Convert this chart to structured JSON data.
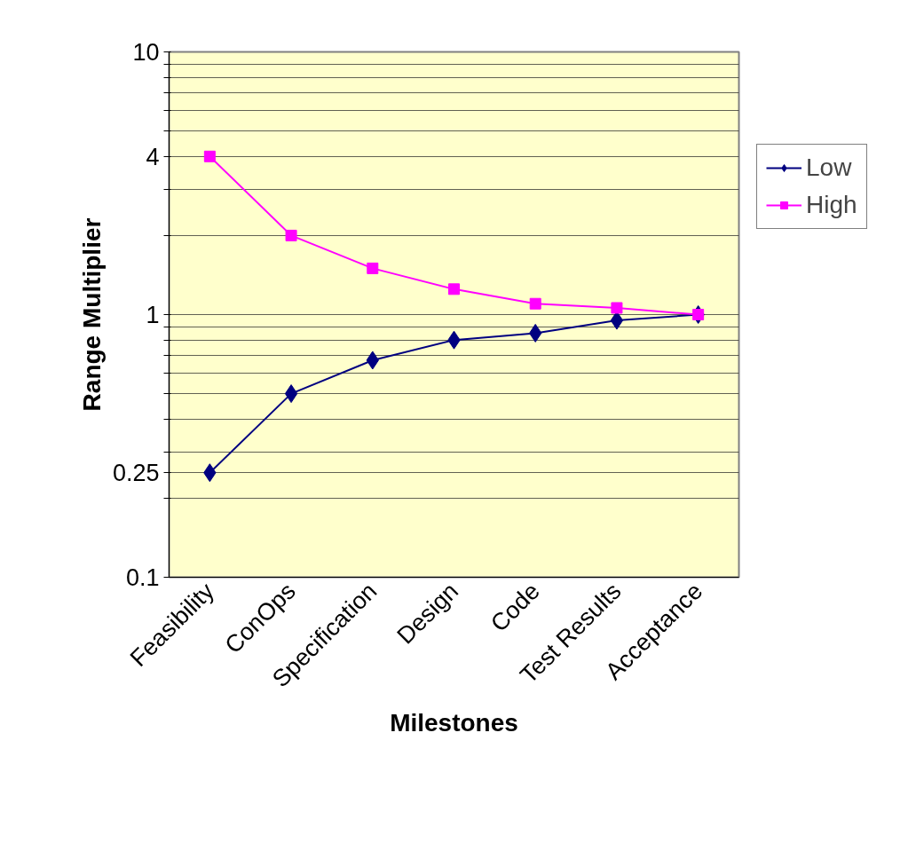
{
  "chart_data": {
    "type": "line",
    "xlabel": "Milestones",
    "ylabel": "Range Multiplier",
    "categories": [
      "Feasibility",
      "ConOps",
      "Specification",
      "Design",
      "Code",
      "Test Results",
      "Acceptance"
    ],
    "series": [
      {
        "name": "Low",
        "color": "#000080",
        "marker": "diamond",
        "values": [
          0.25,
          0.5,
          0.67,
          0.8,
          0.85,
          0.95,
          1.0
        ]
      },
      {
        "name": "High",
        "color": "#ff00ff",
        "marker": "square",
        "values": [
          4,
          2,
          1.5,
          1.25,
          1.1,
          1.06,
          1.0
        ]
      }
    ],
    "log": "y",
    "ylim": [
      0.1,
      10
    ],
    "yticks": [
      0.1,
      {
        "value": 0.2,
        "label": null
      },
      0.25,
      {
        "value": 0.3,
        "label": null
      },
      {
        "value": 0.4,
        "label": null
      },
      {
        "value": 0.5,
        "label": null
      },
      {
        "value": 0.6,
        "label": null
      },
      {
        "value": 0.7,
        "label": null
      },
      {
        "value": 0.8,
        "label": null
      },
      {
        "value": 0.9,
        "label": null
      },
      1,
      {
        "value": 2,
        "label": null
      },
      {
        "value": 3,
        "label": null
      },
      4,
      {
        "value": 5,
        "label": null
      },
      {
        "value": 6,
        "label": null
      },
      {
        "value": 7,
        "label": null
      },
      {
        "value": 8,
        "label": null
      },
      {
        "value": 9,
        "label": null
      },
      10
    ],
    "grid": "y",
    "legend": "right"
  }
}
